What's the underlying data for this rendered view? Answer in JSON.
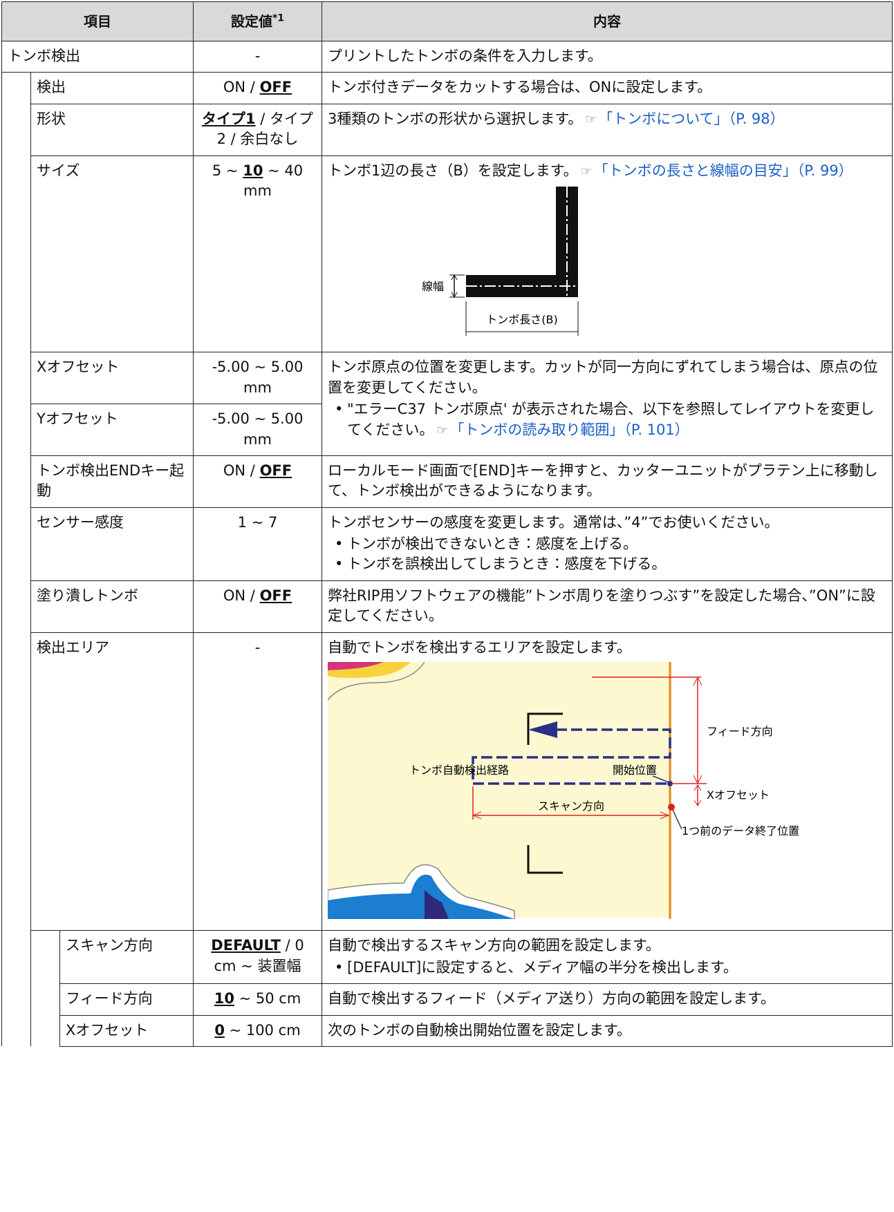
{
  "header": {
    "item": "項目",
    "setting": "設定値",
    "setting_note": "*1",
    "content": "内容"
  },
  "rows": [
    {
      "level": 0,
      "item": "トンボ検出",
      "setting": "-",
      "content": {
        "text": "プリントしたトンボの条件を入力します。"
      }
    },
    {
      "level": 1,
      "item": "検出",
      "setting_before": "ON / ",
      "setting_default": "OFF",
      "content": {
        "text": "トンボ付きデータをカットする場合は、ONに設定します。"
      }
    },
    {
      "level": 1,
      "item": "形状",
      "setting_default": "タイプ1",
      "setting_after": " / タイプ2 / 余白なし",
      "content": {
        "text": "3種類のトンボの形状から選択します。",
        "link": "「トンボについて」（P. 98）"
      }
    },
    {
      "level": 1,
      "item": "サイズ",
      "setting_before": "5 ~ ",
      "setting_default": "10",
      "setting_after": " ~ 40 mm",
      "content": {
        "text": "トンボ1辺の長さ（B）を設定します。",
        "link": "「トンボの長さと線幅の目安」（P. 99）",
        "diagram": {
          "width_label": "線幅",
          "length_label": "トンボ長さ(B)"
        }
      }
    },
    {
      "level": 1,
      "item": "Xオフセット",
      "setting": "-5.00 ~ 5.00 mm",
      "content": {
        "text": "トンボ原点の位置を変更します。カットが同一方向にずれてしまう場合は、原点の位置を変更してください。",
        "bullets": [
          {
            "text": "\"エラーC37 トンボ原点' が表示された場合、以下を参照してレイアウトを変更してください。",
            "link": "「トンボの読み取り範囲」（P. 101）"
          }
        ]
      }
    },
    {
      "level": 1,
      "item": "Yオフセット",
      "setting": "-5.00 ~ 5.00 mm"
    },
    {
      "level": 1,
      "item": "トンボ検出ENDキー起動",
      "setting_before": "ON / ",
      "setting_default": "OFF",
      "content": {
        "text": "ローカルモード画面で[END]キーを押すと、カッターユニットがプラテン上に移動して、トンボ検出ができるようになります。"
      }
    },
    {
      "level": 1,
      "item": "センサー感度",
      "setting": "1 ~ 7",
      "content": {
        "text": "トンボセンサーの感度を変更します。通常は、”4”でお使いください。",
        "bullets": [
          {
            "text": "トンボが検出できないとき：感度を上げる。"
          },
          {
            "text": "トンボを誤検出してしまうとき：感度を下げる。"
          }
        ]
      }
    },
    {
      "level": 1,
      "item": "塗り潰しトンボ",
      "setting_before": "ON / ",
      "setting_default": "OFF",
      "content": {
        "text": "弊社RIP用ソフトウェアの機能”トンボ周りを塗りつぶす”を設定した場合、”ON”に設定してください。"
      }
    },
    {
      "level": 1,
      "item": "検出エリア",
      "setting": "-",
      "content": {
        "text": "自動でトンボを検出するエリアを設定します。",
        "diagram": {
          "feed_label": "フィード方向",
          "path_label": "トンボ自動検出経路",
          "start_label": "開始位置",
          "offset_label": "Xオフセット",
          "scan_label": "スキャン方向",
          "end_label": "1つ前のデータ終了位置"
        }
      }
    },
    {
      "level": 2,
      "item": "スキャン方向",
      "setting_default": "DEFAULT",
      "setting_after": " / 0 cm ~ 装置幅",
      "content": {
        "text": "自動で検出するスキャン方向の範囲を設定します。",
        "bullets": [
          {
            "text": "[DEFAULT]に設定すると、メディア幅の半分を検出します。"
          }
        ]
      }
    },
    {
      "level": 2,
      "item": "フィード方向",
      "setting_default": "10",
      "setting_after": " ~ 50 cm",
      "content": {
        "text": "自動で検出するフィード（メディア送り）方向の範囲を設定します。"
      }
    },
    {
      "level": 2,
      "item": "Xオフセット",
      "setting_default": "0",
      "setting_after": " ~ 100 cm",
      "content": {
        "text": "次のトンボの自動検出開始位置を設定します。"
      }
    }
  ]
}
